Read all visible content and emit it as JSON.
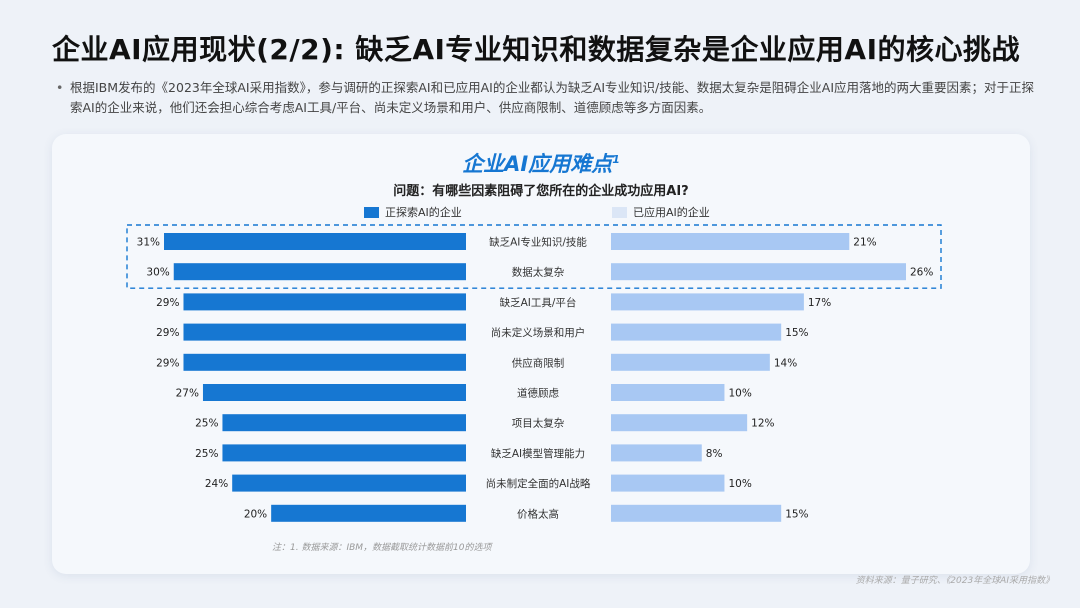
{
  "page": {
    "title": "企业AI应用现状(2/2): 缺乏AI专业知识和数据复杂是企业应用AI的核心挑战",
    "intro": "根据IBM发布的《2023年全球AI采用指数》，参与调研的正探索AI和已应用AI的企业都认为缺乏AI专业知识/技能、数据太复杂是阻碍企业AI应用落地的两大重要因素；对于正探索AI的企业来说，他们还会担心综合考虑AI工具/平台、尚未定义场景和用户、供应商限制、道德顾虑等多方面因素。",
    "footnote": "注：1. 数据来源：IBM，数据截取统计数据前10的选项",
    "source": "资料来源：量子研究、《2023年全球AI采用指数》"
  },
  "chart_data": {
    "type": "bar",
    "title": "企业AI应用难点",
    "title_superscript": "1",
    "subtitle": "问题：有哪些因素阻碍了您所在的企业成功应用AI?",
    "legend_placement": "top",
    "categories": [
      "缺乏AI专业知识/技能",
      "数据太复杂",
      "缺乏AI工具/平台",
      "尚未定义场景和用户",
      "供应商限制",
      "道德顾虑",
      "项目太复杂",
      "缺乏AI模型管理能力",
      "尚未制定全面的AI战略",
      "价格太高"
    ],
    "series": [
      {
        "name": "正探索AI的企业",
        "color": "#1677d2",
        "values": [
          31,
          30,
          29,
          29,
          29,
          27,
          25,
          25,
          24,
          20
        ],
        "labels": [
          "31%",
          "30%",
          "29%",
          "29%",
          "29%",
          "27%",
          "25%",
          "25%",
          "24%",
          "20%"
        ]
      },
      {
        "name": "已应用AI的企业",
        "color": "#a8c8f3",
        "legend_color": "#dbe6f6",
        "values": [
          21,
          26,
          17,
          15,
          14,
          10,
          12,
          8,
          10,
          15
        ],
        "labels": [
          "21%",
          "26%",
          "17%",
          "15%",
          "14%",
          "10%",
          "12%",
          "8%",
          "10%",
          "15%"
        ]
      }
    ],
    "highlighted_categories": [
      0,
      1
    ],
    "highlight_color": "#1677d2"
  }
}
